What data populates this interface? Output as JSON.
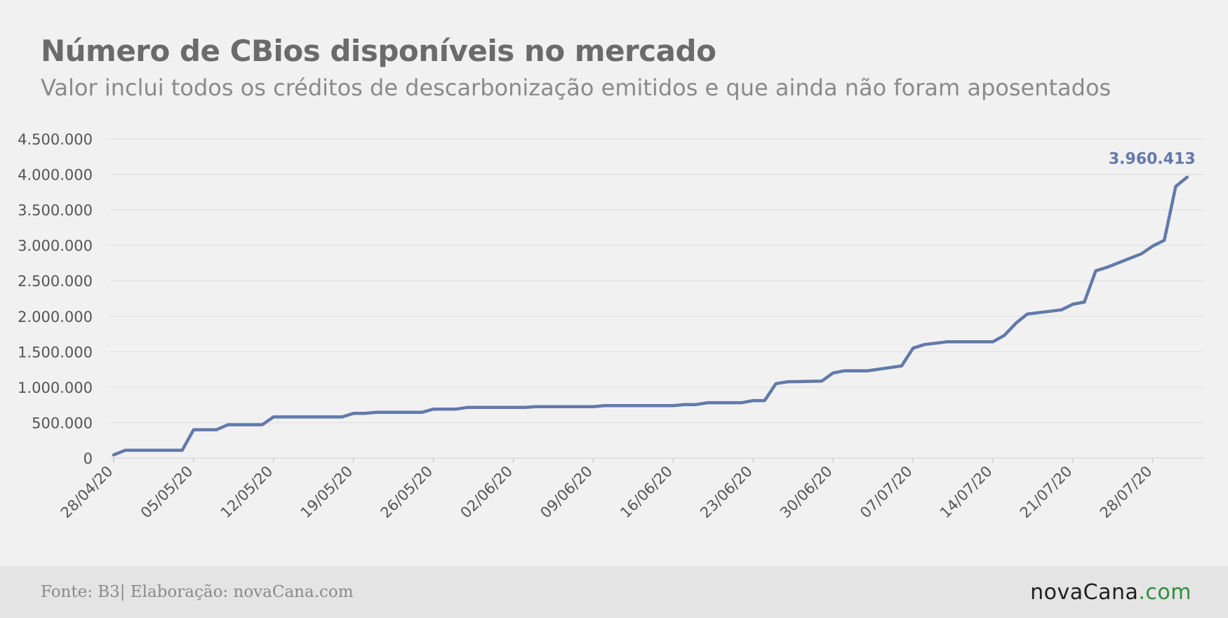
{
  "header": {
    "title": "Número de CBios disponíveis no mercado",
    "subtitle": "Valor inclui todos os créditos de descarbonização emitidos e que ainda não foram aposentados"
  },
  "footer": {
    "source": "Fonte: B3| Elaboração: novaCana.com",
    "brand_name": "novaCana",
    "brand_suffix": ".com"
  },
  "colors": {
    "line": "#6279aa",
    "grid": "#dcdcdc",
    "axis_text": "#555555"
  },
  "chart_data": {
    "type": "line",
    "title": "Número de CBios disponíveis no mercado",
    "subtitle": "Valor inclui todos os créditos de descarbonização emitidos e que ainda não foram aposentados",
    "xlabel": "",
    "ylabel": "",
    "ylim": [
      0,
      4500000
    ],
    "y_ticks": [
      0,
      500000,
      1000000,
      1500000,
      2000000,
      2500000,
      3000000,
      3500000,
      4000000,
      4500000
    ],
    "y_tick_labels": [
      "0",
      "500.000",
      "1.000.000",
      "1.500.000",
      "2.000.000",
      "2.500.000",
      "3.000.000",
      "3.500.000",
      "4.000.000",
      "4.500.000"
    ],
    "x_tick_labels": [
      "28/04/20",
      "05/05/20",
      "12/05/20",
      "19/05/20",
      "26/05/20",
      "02/06/20",
      "09/06/20",
      "16/06/20",
      "23/06/20",
      "30/06/20",
      "07/07/20",
      "14/07/20",
      "21/07/20",
      "28/07/20"
    ],
    "x_tick_dates": [
      "2020-04-28",
      "2020-05-05",
      "2020-05-12",
      "2020-05-19",
      "2020-05-26",
      "2020-06-02",
      "2020-06-09",
      "2020-06-16",
      "2020-06-23",
      "2020-06-30",
      "2020-07-07",
      "2020-07-14",
      "2020-07-21",
      "2020-07-28"
    ],
    "x_range": [
      "2020-04-28",
      "2020-08-01"
    ],
    "grid": true,
    "legend": "none",
    "series": [
      {
        "points": [
          {
            "x": "2020-04-28",
            "y": 45000
          },
          {
            "x": "2020-04-29",
            "y": 110000
          },
          {
            "x": "2020-05-04",
            "y": 110000
          },
          {
            "x": "2020-05-05",
            "y": 400000
          },
          {
            "x": "2020-05-07",
            "y": 400000
          },
          {
            "x": "2020-05-08",
            "y": 470000
          },
          {
            "x": "2020-05-11",
            "y": 470000
          },
          {
            "x": "2020-05-12",
            "y": 580000
          },
          {
            "x": "2020-05-18",
            "y": 580000
          },
          {
            "x": "2020-05-19",
            "y": 630000
          },
          {
            "x": "2020-05-20",
            "y": 630000
          },
          {
            "x": "2020-05-21",
            "y": 645000
          },
          {
            "x": "2020-05-25",
            "y": 645000
          },
          {
            "x": "2020-05-26",
            "y": 690000
          },
          {
            "x": "2020-05-28",
            "y": 690000
          },
          {
            "x": "2020-05-29",
            "y": 715000
          },
          {
            "x": "2020-06-03",
            "y": 715000
          },
          {
            "x": "2020-06-04",
            "y": 725000
          },
          {
            "x": "2020-06-09",
            "y": 725000
          },
          {
            "x": "2020-06-10",
            "y": 740000
          },
          {
            "x": "2020-06-16",
            "y": 740000
          },
          {
            "x": "2020-06-17",
            "y": 755000
          },
          {
            "x": "2020-06-18",
            "y": 755000
          },
          {
            "x": "2020-06-19",
            "y": 780000
          },
          {
            "x": "2020-06-22",
            "y": 780000
          },
          {
            "x": "2020-06-23",
            "y": 810000
          },
          {
            "x": "2020-06-24",
            "y": 810000
          },
          {
            "x": "2020-06-25",
            "y": 1050000
          },
          {
            "x": "2020-06-26",
            "y": 1075000
          },
          {
            "x": "2020-06-29",
            "y": 1085000
          },
          {
            "x": "2020-06-30",
            "y": 1200000
          },
          {
            "x": "2020-07-01",
            "y": 1230000
          },
          {
            "x": "2020-07-03",
            "y": 1230000
          },
          {
            "x": "2020-07-06",
            "y": 1300000
          },
          {
            "x": "2020-07-07",
            "y": 1550000
          },
          {
            "x": "2020-07-08",
            "y": 1600000
          },
          {
            "x": "2020-07-09",
            "y": 1620000
          },
          {
            "x": "2020-07-10",
            "y": 1640000
          },
          {
            "x": "2020-07-14",
            "y": 1640000
          },
          {
            "x": "2020-07-15",
            "y": 1730000
          },
          {
            "x": "2020-07-16",
            "y": 1900000
          },
          {
            "x": "2020-07-17",
            "y": 2030000
          },
          {
            "x": "2020-07-20",
            "y": 2090000
          },
          {
            "x": "2020-07-21",
            "y": 2170000
          },
          {
            "x": "2020-07-22",
            "y": 2200000
          },
          {
            "x": "2020-07-23",
            "y": 2640000
          },
          {
            "x": "2020-07-24",
            "y": 2690000
          },
          {
            "x": "2020-07-27",
            "y": 2880000
          },
          {
            "x": "2020-07-28",
            "y": 2990000
          },
          {
            "x": "2020-07-29",
            "y": 3070000
          },
          {
            "x": "2020-07-30",
            "y": 3830000
          },
          {
            "x": "2020-07-31",
            "y": 3960413
          }
        ]
      }
    ],
    "annotations": [
      {
        "text": "3.960.413",
        "x": "2020-07-31",
        "y": 3960413
      }
    ]
  }
}
